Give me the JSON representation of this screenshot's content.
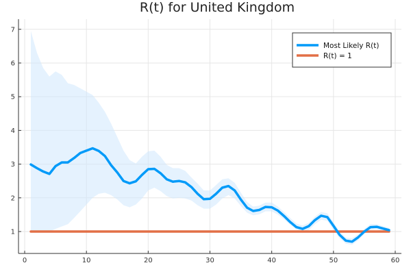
{
  "chart_data": {
    "type": "line",
    "title": "R(t) for United Kingdom",
    "xlim": [
      -1,
      61
    ],
    "ylim": [
      0.35,
      7.3
    ],
    "xticks": [
      0,
      10,
      20,
      30,
      40,
      50,
      60
    ],
    "yticks": [
      1,
      2,
      3,
      4,
      5,
      6,
      7
    ],
    "grid": true,
    "legend_position": "top-right",
    "series": [
      {
        "name": "Most Likely R(t)",
        "color": "#009af9",
        "x": [
          1,
          2,
          3,
          4,
          5,
          6,
          7,
          8,
          9,
          10,
          11,
          12,
          13,
          14,
          15,
          16,
          17,
          18,
          19,
          20,
          21,
          22,
          23,
          24,
          25,
          26,
          27,
          28,
          29,
          30,
          31,
          32,
          33,
          34,
          35,
          36,
          37,
          38,
          39,
          40,
          41,
          42,
          43,
          44,
          45,
          46,
          47,
          48,
          49,
          50,
          51,
          52,
          53,
          54,
          55,
          56,
          57,
          58,
          59
        ],
        "values": [
          2.99,
          2.88,
          2.78,
          2.71,
          2.94,
          3.05,
          3.05,
          3.18,
          3.33,
          3.4,
          3.47,
          3.39,
          3.24,
          2.97,
          2.75,
          2.5,
          2.43,
          2.49,
          2.68,
          2.85,
          2.86,
          2.73,
          2.55,
          2.48,
          2.5,
          2.46,
          2.32,
          2.12,
          1.96,
          1.97,
          2.12,
          2.3,
          2.35,
          2.22,
          1.95,
          1.71,
          1.61,
          1.64,
          1.73,
          1.72,
          1.62,
          1.46,
          1.28,
          1.13,
          1.08,
          1.16,
          1.34,
          1.47,
          1.43,
          1.17,
          0.9,
          0.73,
          0.7,
          0.83,
          1.0,
          1.13,
          1.14,
          1.09,
          1.04
        ]
      },
      {
        "name": "R(t) = 1",
        "color": "#e26f46",
        "x": [
          1,
          59
        ],
        "values": [
          1,
          1
        ]
      }
    ],
    "band": {
      "color": "#cfe8fd",
      "x": [
        1,
        2,
        3,
        4,
        5,
        6,
        7,
        8,
        9,
        10,
        11,
        12,
        13,
        14,
        15,
        16,
        17,
        18,
        19,
        20,
        21,
        22,
        23,
        24,
        25,
        26,
        27,
        28,
        29,
        30,
        31,
        32,
        33,
        34,
        35,
        36,
        37,
        38,
        39,
        40,
        41,
        42,
        43,
        44,
        45,
        46,
        47,
        48,
        49,
        50,
        51,
        52,
        53,
        54,
        55,
        56,
        57,
        58,
        59
      ],
      "lower": [
        1.0,
        1.0,
        1.0,
        1.0,
        1.08,
        1.15,
        1.22,
        1.4,
        1.6,
        1.8,
        2.0,
        2.12,
        2.15,
        2.08,
        1.95,
        1.78,
        1.72,
        1.8,
        1.98,
        2.22,
        2.3,
        2.2,
        2.05,
        1.98,
        2.0,
        1.98,
        1.92,
        1.78,
        1.68,
        1.68,
        1.8,
        1.98,
        2.08,
        1.98,
        1.76,
        1.56,
        1.48,
        1.51,
        1.6,
        1.6,
        1.5,
        1.36,
        1.2,
        1.06,
        1.0,
        1.04,
        1.22,
        1.35,
        1.32,
        1.05,
        0.8,
        0.64,
        0.61,
        0.74,
        0.92,
        1.05,
        1.06,
        1.02,
        0.97
      ],
      "upper": [
        6.95,
        6.3,
        5.85,
        5.6,
        5.75,
        5.65,
        5.4,
        5.35,
        5.25,
        5.15,
        5.05,
        4.82,
        4.55,
        4.2,
        3.8,
        3.4,
        3.12,
        3.02,
        3.22,
        3.38,
        3.4,
        3.22,
        2.98,
        2.88,
        2.88,
        2.8,
        2.6,
        2.42,
        2.22,
        2.22,
        2.38,
        2.55,
        2.58,
        2.45,
        2.15,
        1.88,
        1.74,
        1.77,
        1.86,
        1.86,
        1.74,
        1.58,
        1.4,
        1.24,
        1.18,
        1.26,
        1.44,
        1.58,
        1.54,
        1.28,
        1.0,
        0.82,
        0.8,
        0.92,
        1.08,
        1.22,
        1.22,
        1.16,
        1.11
      ]
    }
  }
}
